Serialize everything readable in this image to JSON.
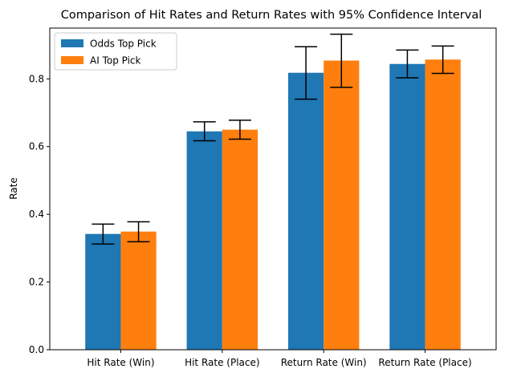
{
  "chart_data": {
    "type": "bar",
    "title": "Comparison of Hit Rates and Return Rates with 95% Confidence Interval",
    "xlabel": "",
    "ylabel": "Rate",
    "ylim": [
      0,
      0.95
    ],
    "yticks": [
      "0.0",
      "0.2",
      "0.4",
      "0.6",
      "0.8"
    ],
    "categories": [
      "Hit Rate (Win)",
      "Hit Rate (Place)",
      "Return Rate (Win)",
      "Return Rate (Place)"
    ],
    "series": [
      {
        "name": "Odds Top Pick",
        "color": "#1f77b4",
        "values": [
          0.342,
          0.645,
          0.818,
          0.844
        ],
        "ci_low": [
          0.312,
          0.617,
          0.74,
          0.803
        ],
        "ci_high": [
          0.371,
          0.673,
          0.895,
          0.885
        ]
      },
      {
        "name": "AI Top Pick",
        "color": "#ff7f0e",
        "values": [
          0.349,
          0.65,
          0.854,
          0.857
        ],
        "ci_low": [
          0.319,
          0.622,
          0.775,
          0.816
        ],
        "ci_high": [
          0.378,
          0.678,
          0.932,
          0.897
        ]
      }
    ],
    "legend_position": "upper-left",
    "grid": false
  }
}
